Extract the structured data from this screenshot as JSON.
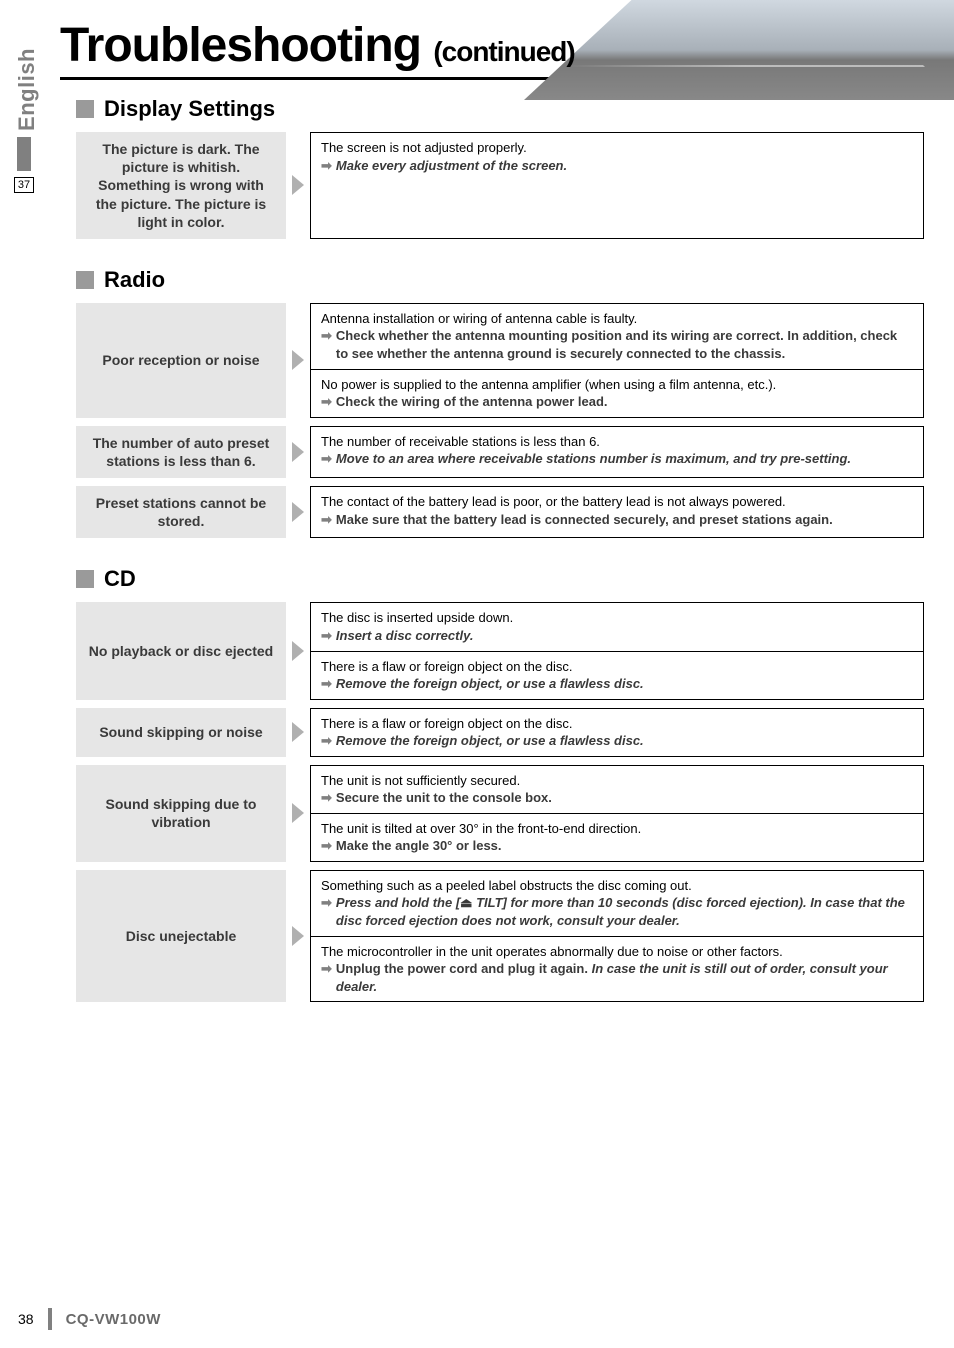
{
  "page": {
    "title_main": "Troubleshooting",
    "title_cont": "(continued)",
    "side_tab": "English",
    "side_num": "37",
    "footer_page": "38",
    "footer_model": "CQ-VW100W"
  },
  "sections": {
    "display": {
      "heading": "Display Settings",
      "rows": [
        {
          "symptom": "The picture is dark. The picture is whitish. Something is wrong with the picture. The picture is light in color.",
          "causes": [
            {
              "desc": "The screen is not adjusted properly.",
              "solution": "Make every adjustment of the screen.",
              "ital": true
            }
          ]
        }
      ]
    },
    "radio": {
      "heading": "Radio",
      "rows": [
        {
          "symptom": "Poor reception or noise",
          "causes": [
            {
              "desc": "Antenna installation or wiring of antenna cable is faulty.",
              "solution": "Check whether the antenna mounting position and its wiring are correct. In addition, check to see whether the antenna ground is securely connected to the chassis."
            },
            {
              "desc": "No power is supplied to the antenna amplifier (when using a film antenna, etc.).",
              "solution": "Check the wiring of the antenna power lead."
            }
          ]
        },
        {
          "symptom": "The number of auto preset stations is less than 6.",
          "causes": [
            {
              "desc": "The number of receivable stations is less than 6.",
              "solution": "Move to an area where receivable stations number is maximum, and try pre-setting.",
              "ital": true
            }
          ]
        },
        {
          "symptom": "Preset stations cannot be stored.",
          "causes": [
            {
              "desc": "The contact of the battery lead is poor, or the battery lead is not always powered.",
              "solution": "Make sure that the battery lead is connected securely, and preset stations again."
            }
          ]
        }
      ]
    },
    "cd": {
      "heading": "CD",
      "rows": [
        {
          "symptom": "No playback or disc ejected",
          "causes": [
            {
              "desc": "The disc is inserted upside down.",
              "solution": "Insert a disc correctly.",
              "ital": true
            },
            {
              "desc": "There is a flaw or foreign object on the disc.",
              "solution": "Remove the foreign object, or use a flawless disc.",
              "ital": true
            }
          ]
        },
        {
          "symptom": "Sound skipping or noise",
          "causes": [
            {
              "desc": "There is a flaw or foreign object on the disc.",
              "solution": "Remove the foreign object, or use a flawless disc.",
              "ital": true
            }
          ]
        },
        {
          "symptom": "Sound skipping due to vibration",
          "causes": [
            {
              "desc": "The unit is not sufficiently secured.",
              "solution": "Secure the unit to the console box."
            },
            {
              "desc": "The unit is tilted at over 30° in the front-to-end direction.",
              "solution": "Make the angle 30° or less."
            }
          ]
        },
        {
          "symptom": "Disc unejectable",
          "causes": [
            {
              "desc": "Something such as a peeled label obstructs the disc coming out.",
              "solution_html": "<span class='ital'>Press and hold the [<span style='font-style:normal'>⏏</span> TILT] for more than 10 seconds (disc forced ejection). In case that the disc forced ejection does not work, consult your dealer.</span>"
            },
            {
              "desc": "The microcontroller in the unit operates abnormally due to noise or other factors.",
              "solution_html": "Unplug the power cord and plug it again. <span class='ital'>In case the unit is still out of order, consult your dealer.</span>"
            }
          ]
        }
      ]
    }
  }
}
